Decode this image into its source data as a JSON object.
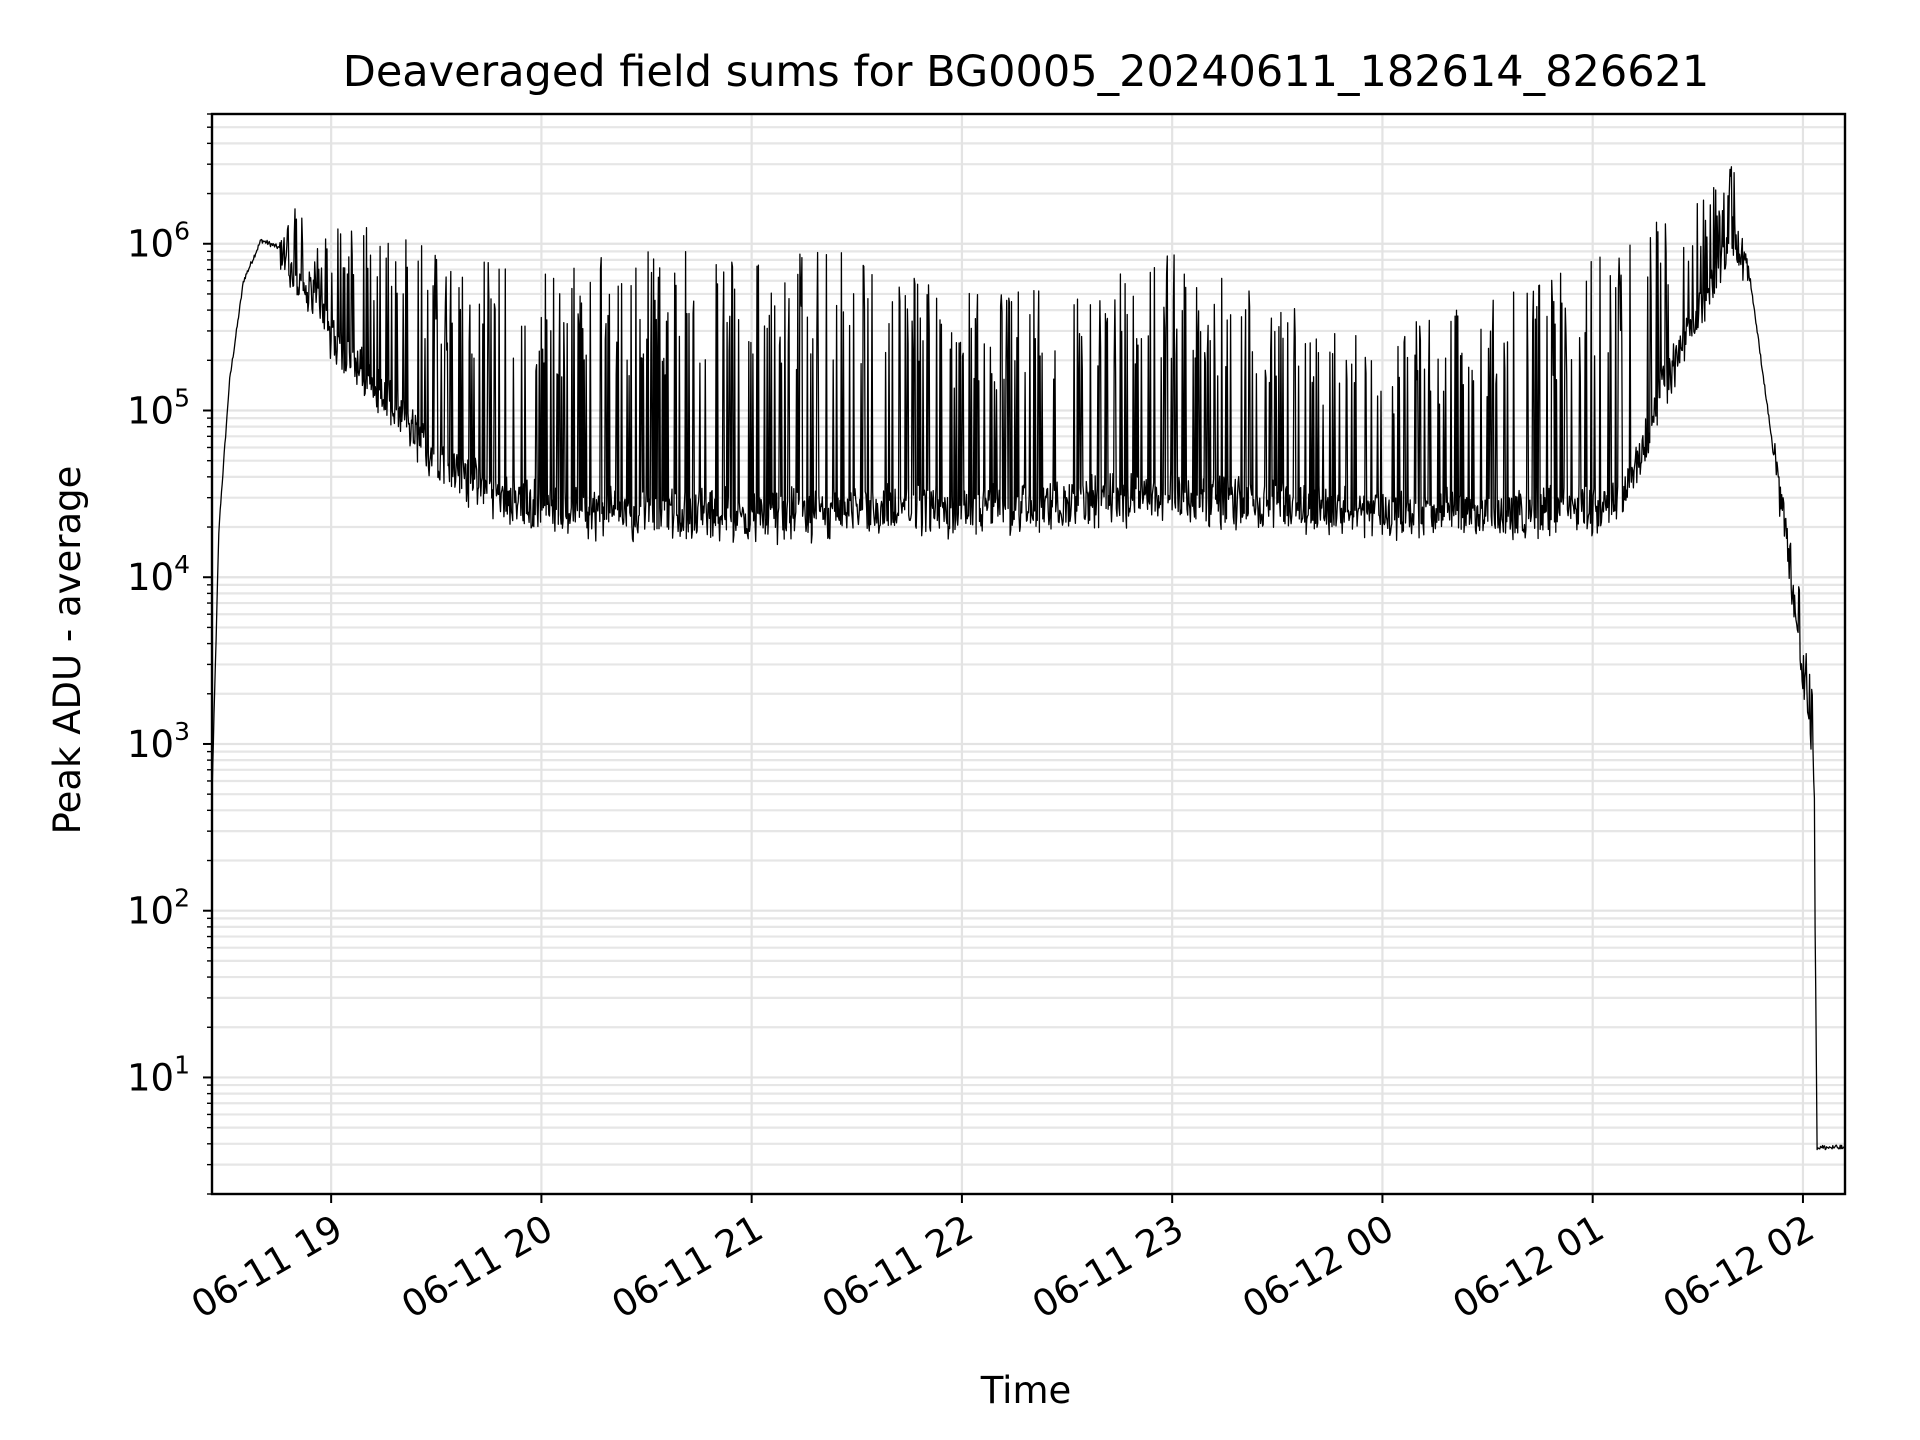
{
  "chart_data": {
    "type": "line",
    "title": "Deaveraged field sums for BG0005_20240611_182614_826621",
    "xlabel": "Time",
    "ylabel": "Peak ADU - average",
    "yscale": "log",
    "xlim": [
      "2024-06-11 18:26",
      "2024-06-12 02:12"
    ],
    "ylim": [
      2,
      6000000
    ],
    "grid": true,
    "x_tick_labels": [
      "06-11 19",
      "06-11 20",
      "06-11 21",
      "06-11 22",
      "06-11 23",
      "06-12 00",
      "06-12 01",
      "06-12 02"
    ],
    "x_tick_times": [
      "2024-06-11 19:00",
      "2024-06-11 20:00",
      "2024-06-11 21:00",
      "2024-06-11 22:00",
      "2024-06-11 23:00",
      "2024-06-12 00:00",
      "2024-06-12 01:00",
      "2024-06-12 02:00"
    ],
    "y_ticks": [
      {
        "base": "10",
        "exp": "1",
        "value": 10
      },
      {
        "base": "10",
        "exp": "2",
        "value": 100
      },
      {
        "base": "10",
        "exp": "3",
        "value": 1000
      },
      {
        "base": "10",
        "exp": "4",
        "value": 10000
      },
      {
        "base": "10",
        "exp": "5",
        "value": 100000
      },
      {
        "base": "10",
        "exp": "6",
        "value": 1000000
      }
    ],
    "series": [
      {
        "color": "#000000",
        "envelope": [
          {
            "t": "2024-06-11 18:26",
            "base": 500,
            "peak": 500
          },
          {
            "t": "2024-06-11 18:28",
            "base": 20000,
            "peak": 20000
          },
          {
            "t": "2024-06-11 18:31",
            "base": 150000,
            "peak": 150000
          },
          {
            "t": "2024-06-11 18:35",
            "base": 600000,
            "peak": 600000
          },
          {
            "t": "2024-06-11 18:40",
            "base": 1050000,
            "peak": 1100000
          },
          {
            "t": "2024-06-11 18:45",
            "base": 950000,
            "peak": 1000000
          },
          {
            "t": "2024-06-11 18:50",
            "base": 550000,
            "peak": 1900000
          },
          {
            "t": "2024-06-11 18:57",
            "base": 450000,
            "peak": 900000
          },
          {
            "t": "2024-06-11 19:00",
            "base": 250000,
            "peak": 1300000
          },
          {
            "t": "2024-06-11 19:10",
            "base": 150000,
            "peak": 1300000
          },
          {
            "t": "2024-06-11 19:20",
            "base": 80000,
            "peak": 1100000
          },
          {
            "t": "2024-06-11 19:30",
            "base": 45000,
            "peak": 950000
          },
          {
            "t": "2024-06-11 19:45",
            "base": 28000,
            "peak": 800000
          },
          {
            "t": "2024-06-11 20:00",
            "base": 22000,
            "peak": 750000
          },
          {
            "t": "2024-06-11 20:30",
            "base": 20000,
            "peak": 900000
          },
          {
            "t": "2024-06-11 21:00",
            "base": 20000,
            "peak": 950000
          },
          {
            "t": "2024-06-11 21:30",
            "base": 21000,
            "peak": 900000
          },
          {
            "t": "2024-06-11 22:00",
            "base": 22000,
            "peak": 500000
          },
          {
            "t": "2024-06-11 22:30",
            "base": 24000,
            "peak": 600000
          },
          {
            "t": "2024-06-11 23:00",
            "base": 26000,
            "peak": 900000
          },
          {
            "t": "2024-06-11 23:30",
            "base": 24000,
            "peak": 450000
          },
          {
            "t": "2024-06-12 00:00",
            "base": 22000,
            "peak": 300000
          },
          {
            "t": "2024-06-12 00:30",
            "base": 21000,
            "peak": 450000
          },
          {
            "t": "2024-06-12 01:00",
            "base": 22000,
            "peak": 900000
          },
          {
            "t": "2024-06-12 01:10",
            "base": 30000,
            "peak": 1300000
          },
          {
            "t": "2024-06-12 01:20",
            "base": 120000,
            "peak": 1400000
          },
          {
            "t": "2024-06-12 01:30",
            "base": 350000,
            "peak": 1800000
          },
          {
            "t": "2024-06-12 01:40",
            "base": 1050000,
            "peak": 3000000
          },
          {
            "t": "2024-06-12 01:45",
            "base": 600000,
            "peak": 600000
          },
          {
            "t": "2024-06-12 01:50",
            "base": 100000,
            "peak": 100000
          },
          {
            "t": "2024-06-12 02:03",
            "base": 900,
            "peak": 2800
          },
          {
            "t": "2024-06-12 02:04",
            "base": 3.8,
            "peak": 3.8
          },
          {
            "t": "2024-06-12 02:12",
            "base": 3.8,
            "peak": 3.8
          }
        ]
      }
    ]
  }
}
